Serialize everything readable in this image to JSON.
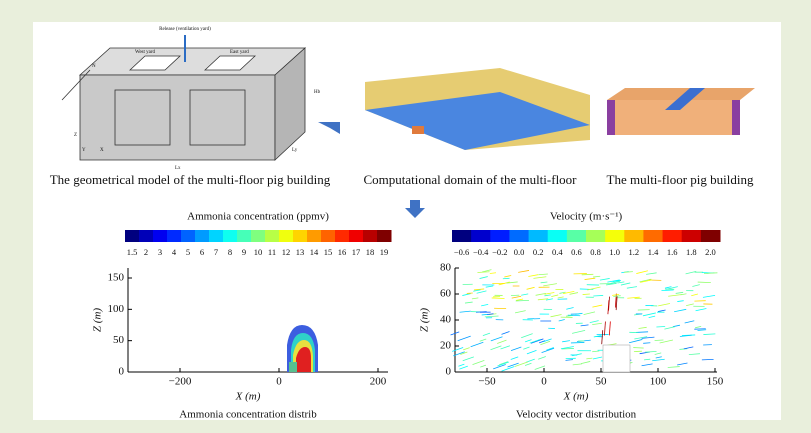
{
  "top": {
    "geometry": {
      "caption": "The geometrical model of the multi-floor pig building",
      "release": "Release (ventilation yard)",
      "west": "West yard",
      "east": "East yard",
      "north": "N",
      "z": "Z",
      "x": "X",
      "y": "Y",
      "height": "Hb",
      "length": "Lx",
      "width": "Ly"
    },
    "domain": {
      "caption": "Computational domain of the multi-floor"
    },
    "building": {
      "caption": "The multi-floor pig building"
    }
  },
  "ammonia": {
    "title": "Ammonia concentration (ppmv)",
    "scale": [
      "1.5",
      "2",
      "3",
      "4",
      "5",
      "6",
      "7",
      "8",
      "9",
      "10",
      "11",
      "12",
      "13",
      "14",
      "15",
      "16",
      "17",
      "18",
      "19"
    ],
    "xticks": [
      "−200",
      "0",
      "200"
    ],
    "yticks": [
      "0",
      "50",
      "100",
      "150"
    ],
    "xlabel": "X (m)",
    "ylabel": "Z (m)",
    "caption": "Ammonia concentration distrib"
  },
  "velocity": {
    "title": "Velocity (m·s⁻¹)",
    "scale": [
      "−0.6",
      "−0.4",
      "−0.2",
      "0.0",
      "0.2",
      "0.4",
      "0.6",
      "0.8",
      "1.0",
      "1.2",
      "1.4",
      "1.6",
      "1.8",
      "2.0"
    ],
    "xticks": [
      "−50",
      "0",
      "50",
      "100",
      "150"
    ],
    "yticks": [
      "0",
      "20",
      "40",
      "60",
      "80"
    ],
    "xlabel": "X (m)",
    "ylabel": "Z (m)",
    "caption": "Velocity vector distribution"
  }
}
